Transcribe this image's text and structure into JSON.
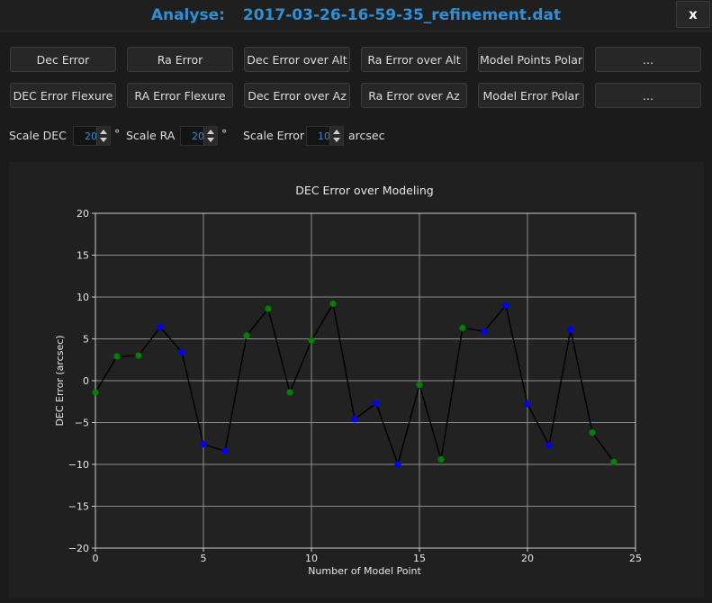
{
  "window": {
    "title_prefix": "Analyse:",
    "filename": "2017-03-26-16-59-35_refinement.dat",
    "close_label": "x"
  },
  "buttons": {
    "row1": [
      "Dec Error",
      "Ra Error",
      "Dec Error over Alt",
      "Ra Error over Alt",
      "Model Points Polar",
      "..."
    ],
    "row2": [
      "DEC Error Flexure",
      "RA Error Flexure",
      "Dec Error over Az",
      "Ra Error over Az",
      "Model Error Polar",
      "..."
    ]
  },
  "scales": {
    "dec_label": "Scale DEC",
    "dec_value": "20",
    "dec_unit": "°",
    "ra_label": "Scale RA",
    "ra_value": "20",
    "ra_unit": "°",
    "error_label": "Scale Error",
    "error_value": "10",
    "error_unit": "arcsec"
  },
  "colors": {
    "accent": "#2f8fd6",
    "point_blue": "#0000ff",
    "point_green": "#008000",
    "line": "#000000",
    "plot_bg": "#222222",
    "grid": "#8c8c8c"
  },
  "chart_data": {
    "type": "line",
    "title": "DEC Error over Modeling",
    "xlabel": "Number of Model Point",
    "ylabel": "DEC Error (arcsec)",
    "xlim": [
      0,
      25
    ],
    "ylim": [
      -20,
      20
    ],
    "xticks": [
      0,
      5,
      10,
      15,
      20,
      25
    ],
    "yticks": [
      -20,
      -15,
      -10,
      -5,
      0,
      5,
      10,
      15,
      20
    ],
    "ytick_labels": [
      "−20",
      "−15",
      "−10",
      "−5",
      "0",
      "5",
      "10",
      "15",
      "20"
    ],
    "grid": true,
    "x": [
      0,
      1,
      2,
      3,
      4,
      5,
      6,
      7,
      8,
      9,
      10,
      11,
      12,
      13,
      14,
      15,
      16,
      17,
      18,
      19,
      20,
      21,
      22,
      23,
      24
    ],
    "y": [
      -1.4,
      2.9,
      3.0,
      6.4,
      3.4,
      -7.6,
      -8.4,
      5.4,
      8.6,
      -1.4,
      4.8,
      9.2,
      -4.6,
      -2.7,
      -10.0,
      -0.5,
      -9.4,
      6.3,
      5.9,
      9.0,
      -2.8,
      -7.7,
      6.1,
      -6.2,
      -9.7
    ],
    "point_colors": [
      "green",
      "green",
      "green",
      "blue",
      "blue",
      "blue",
      "blue",
      "green",
      "green",
      "green",
      "green",
      "green",
      "blue",
      "blue",
      "blue",
      "green",
      "green",
      "green",
      "blue",
      "blue",
      "blue",
      "blue",
      "blue",
      "green",
      "green"
    ]
  }
}
